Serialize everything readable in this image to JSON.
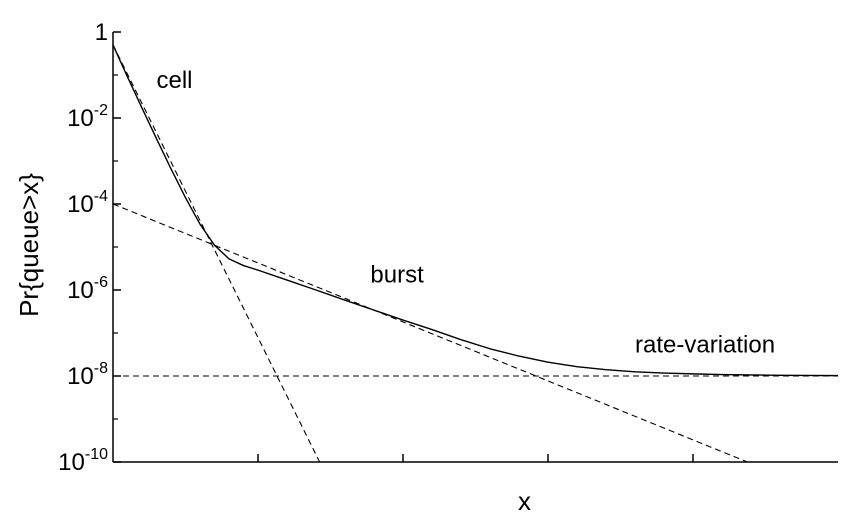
{
  "chart_data": {
    "type": "line",
    "title": "",
    "xlabel": "x",
    "ylabel": "Pr{queue>x}",
    "xlim": [
      0,
      1
    ],
    "ylim": [
      1e-10,
      1
    ],
    "yscale": "log",
    "grid": false,
    "ytick_labels": [
      {
        "value": 1,
        "base": "1",
        "exp": ""
      },
      {
        "value": 0.01,
        "base": "10",
        "exp": "-2"
      },
      {
        "value": 0.0001,
        "base": "10",
        "exp": "-4"
      },
      {
        "value": 1e-06,
        "base": "10",
        "exp": "-6"
      },
      {
        "value": 1e-08,
        "base": "10",
        "exp": "-8"
      },
      {
        "value": 1e-10,
        "base": "10",
        "exp": "-10"
      }
    ],
    "yticks_minor": [
      0.1,
      0.001,
      1e-05,
      1e-07,
      1e-09
    ],
    "xticks": [
      0.2,
      0.4,
      0.6,
      0.8
    ],
    "series": [
      {
        "style": "solid",
        "x": [
          0.0,
          0.02,
          0.04,
          0.06,
          0.08,
          0.1,
          0.12,
          0.14,
          0.16,
          0.18,
          0.2,
          0.24,
          0.28,
          0.32,
          0.36,
          0.4,
          0.44,
          0.48,
          0.52,
          0.56,
          0.6,
          0.64,
          0.68,
          0.72,
          0.76,
          0.8,
          0.84,
          0.88,
          0.92,
          0.96,
          1.0
        ],
        "y": [
          0.5,
          0.09,
          0.017,
          0.0033,
          0.00066,
          0.00014,
          3.4e-05,
          1.1e-05,
          5.3e-06,
          3.7e-06,
          2.9e-06,
          1.7e-06,
          1e-06,
          5.8e-07,
          3.4e-07,
          2e-07,
          1.2e-07,
          7e-08,
          4.3e-08,
          2.9e-08,
          2.1e-08,
          1.65e-08,
          1.4e-08,
          1.25e-08,
          1.17e-08,
          1.12e-08,
          1.08e-08,
          1.06e-08,
          1.04e-08,
          1.03e-08,
          1.02e-08
        ]
      },
      {
        "style": "dashed",
        "x": [
          0.0,
          0.285
        ],
        "y": [
          0.5,
          1e-10
        ]
      },
      {
        "style": "dashed",
        "x": [
          0.0,
          0.875
        ],
        "y": [
          0.0001,
          1e-10
        ]
      },
      {
        "style": "dashed",
        "x": [
          0.0,
          1.0
        ],
        "y": [
          1e-08,
          1e-08
        ]
      }
    ],
    "annotations": [
      {
        "text": "cell",
        "x": 0.06,
        "y": 0.05
      },
      {
        "text": "burst",
        "x": 0.355,
        "y": 1.5e-06
      },
      {
        "text": "rate-variation",
        "x": 0.72,
        "y": 3.5e-08
      }
    ]
  }
}
